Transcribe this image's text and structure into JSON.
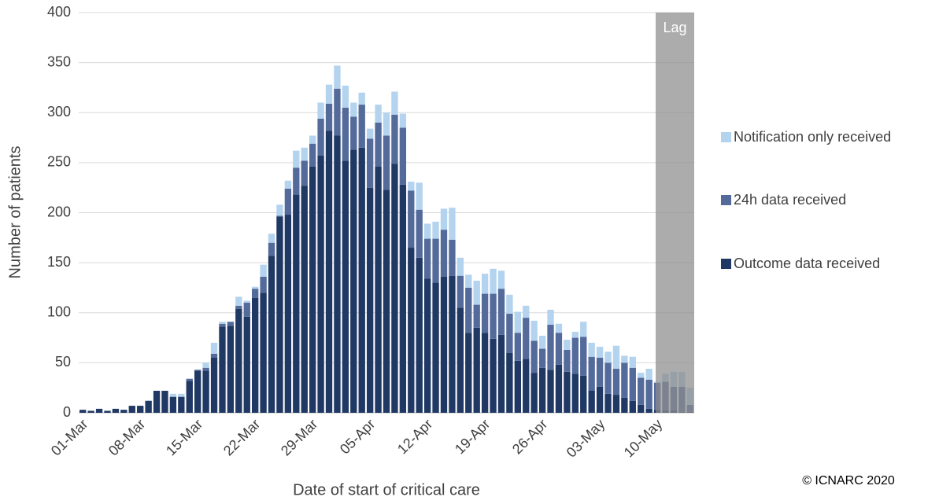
{
  "chart_data": {
    "type": "stacked_bar",
    "y_label": "Number of patients",
    "x_label": "Date of start of critical care",
    "annotations": {
      "lag": "Lag",
      "copyright": "© ICNARC 2020"
    },
    "categories": [
      "01-Mar",
      null,
      null,
      null,
      null,
      null,
      null,
      "08-Mar",
      null,
      null,
      null,
      null,
      null,
      null,
      "15-Mar",
      null,
      null,
      null,
      null,
      null,
      null,
      "22-Mar",
      null,
      null,
      null,
      null,
      null,
      null,
      "29-Mar",
      null,
      null,
      null,
      null,
      null,
      null,
      "05-Apr",
      null,
      null,
      null,
      null,
      null,
      null,
      "12-Apr",
      null,
      null,
      null,
      null,
      null,
      null,
      "19-Apr",
      null,
      null,
      null,
      null,
      null,
      null,
      "26-Apr",
      null,
      null,
      null,
      null,
      null,
      null,
      "03-May",
      null,
      null,
      null,
      null,
      null,
      null,
      "10-May",
      null,
      null,
      null,
      null
    ],
    "series": [
      {
        "name": "Outcome data received",
        "color": "#203864",
        "values": [
          3,
          2,
          4,
          2,
          4,
          3,
          7,
          7,
          12,
          22,
          22,
          16,
          16,
          32,
          42,
          42,
          55,
          86,
          87,
          104,
          96,
          115,
          120,
          157,
          196,
          198,
          218,
          227,
          246,
          257,
          282,
          277,
          252,
          263,
          265,
          225,
          246,
          223,
          249,
          228,
          165,
          155,
          134,
          130,
          136,
          137,
          105,
          80,
          85,
          80,
          74,
          78,
          60,
          52,
          54,
          40,
          45,
          43,
          48,
          41,
          39,
          37,
          22,
          26,
          19,
          18,
          15,
          12,
          8,
          4,
          3,
          2,
          2,
          1,
          1
        ]
      },
      {
        "name": "24h data received",
        "color": "#536a9a",
        "values": [
          0,
          0,
          0,
          0,
          0,
          0,
          0,
          0,
          0,
          0,
          0,
          0,
          0,
          2,
          1,
          3,
          4,
          3,
          4,
          3,
          14,
          9,
          16,
          13,
          1,
          26,
          27,
          25,
          23,
          37,
          27,
          47,
          53,
          33,
          43,
          49,
          44,
          54,
          49,
          57,
          57,
          48,
          40,
          44,
          47,
          36,
          32,
          45,
          23,
          39,
          45,
          46,
          39,
          28,
          41,
          32,
          19,
          45,
          32,
          22,
          36,
          39,
          34,
          29,
          31,
          26,
          35,
          33,
          27,
          29,
          27,
          29,
          24,
          25,
          7
        ]
      },
      {
        "name": "Notification only received",
        "color": "#b4d3ee",
        "values": [
          0,
          0,
          0,
          0,
          0,
          0,
          0,
          0,
          0,
          0,
          0,
          3,
          3,
          0,
          0,
          5,
          11,
          2,
          0,
          9,
          2,
          2,
          12,
          9,
          11,
          8,
          17,
          13,
          8,
          16,
          19,
          23,
          22,
          14,
          12,
          10,
          18,
          23,
          23,
          14,
          9,
          27,
          15,
          17,
          21,
          32,
          18,
          13,
          24,
          20,
          25,
          18,
          19,
          21,
          12,
          20,
          13,
          15,
          9,
          10,
          6,
          15,
          14,
          11,
          11,
          23,
          7,
          11,
          5,
          11,
          1,
          8,
          15,
          15,
          17
        ]
      }
    ],
    "ylim": [
      0,
      400
    ],
    "yticks": [
      0,
      50,
      100,
      150,
      200,
      250,
      300,
      350,
      400
    ],
    "grid": true
  }
}
